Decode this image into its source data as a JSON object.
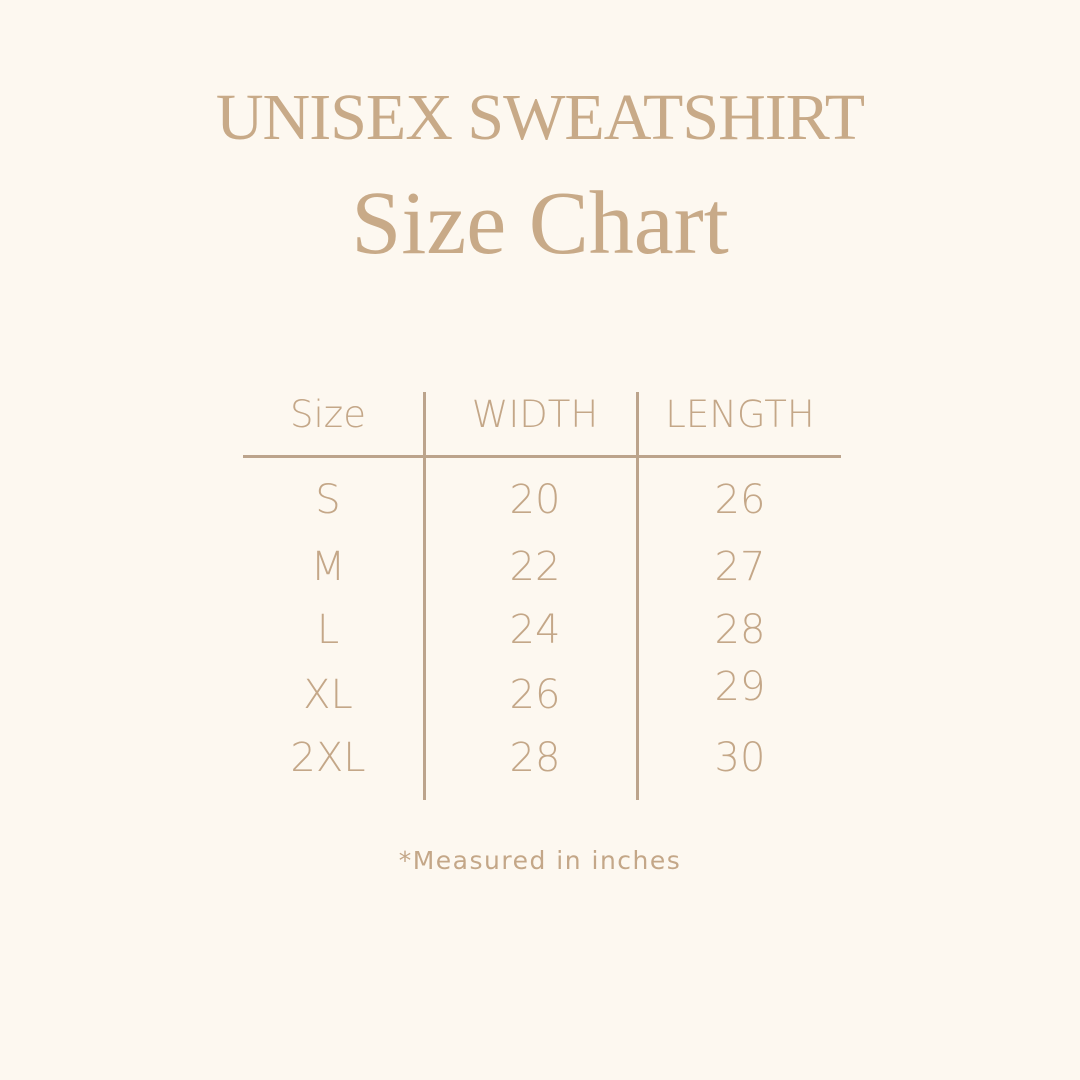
{
  "header": {
    "title": "UNISEX SWEATSHIRT",
    "subtitle": "Size Chart"
  },
  "table": {
    "columns": [
      "Size",
      "WIDTH",
      "LENGTH"
    ],
    "rows": [
      [
        "S",
        "20",
        "26"
      ],
      [
        "M",
        "22",
        "27"
      ],
      [
        "L",
        "24",
        "28"
      ],
      [
        "XL",
        "26",
        "29"
      ],
      [
        "2XL",
        "28",
        "30"
      ]
    ]
  },
  "footnote": "*Measured in inches",
  "colors": {
    "background": "#fdf8f0",
    "text": "#c4a788",
    "lines": "#bca48c"
  }
}
